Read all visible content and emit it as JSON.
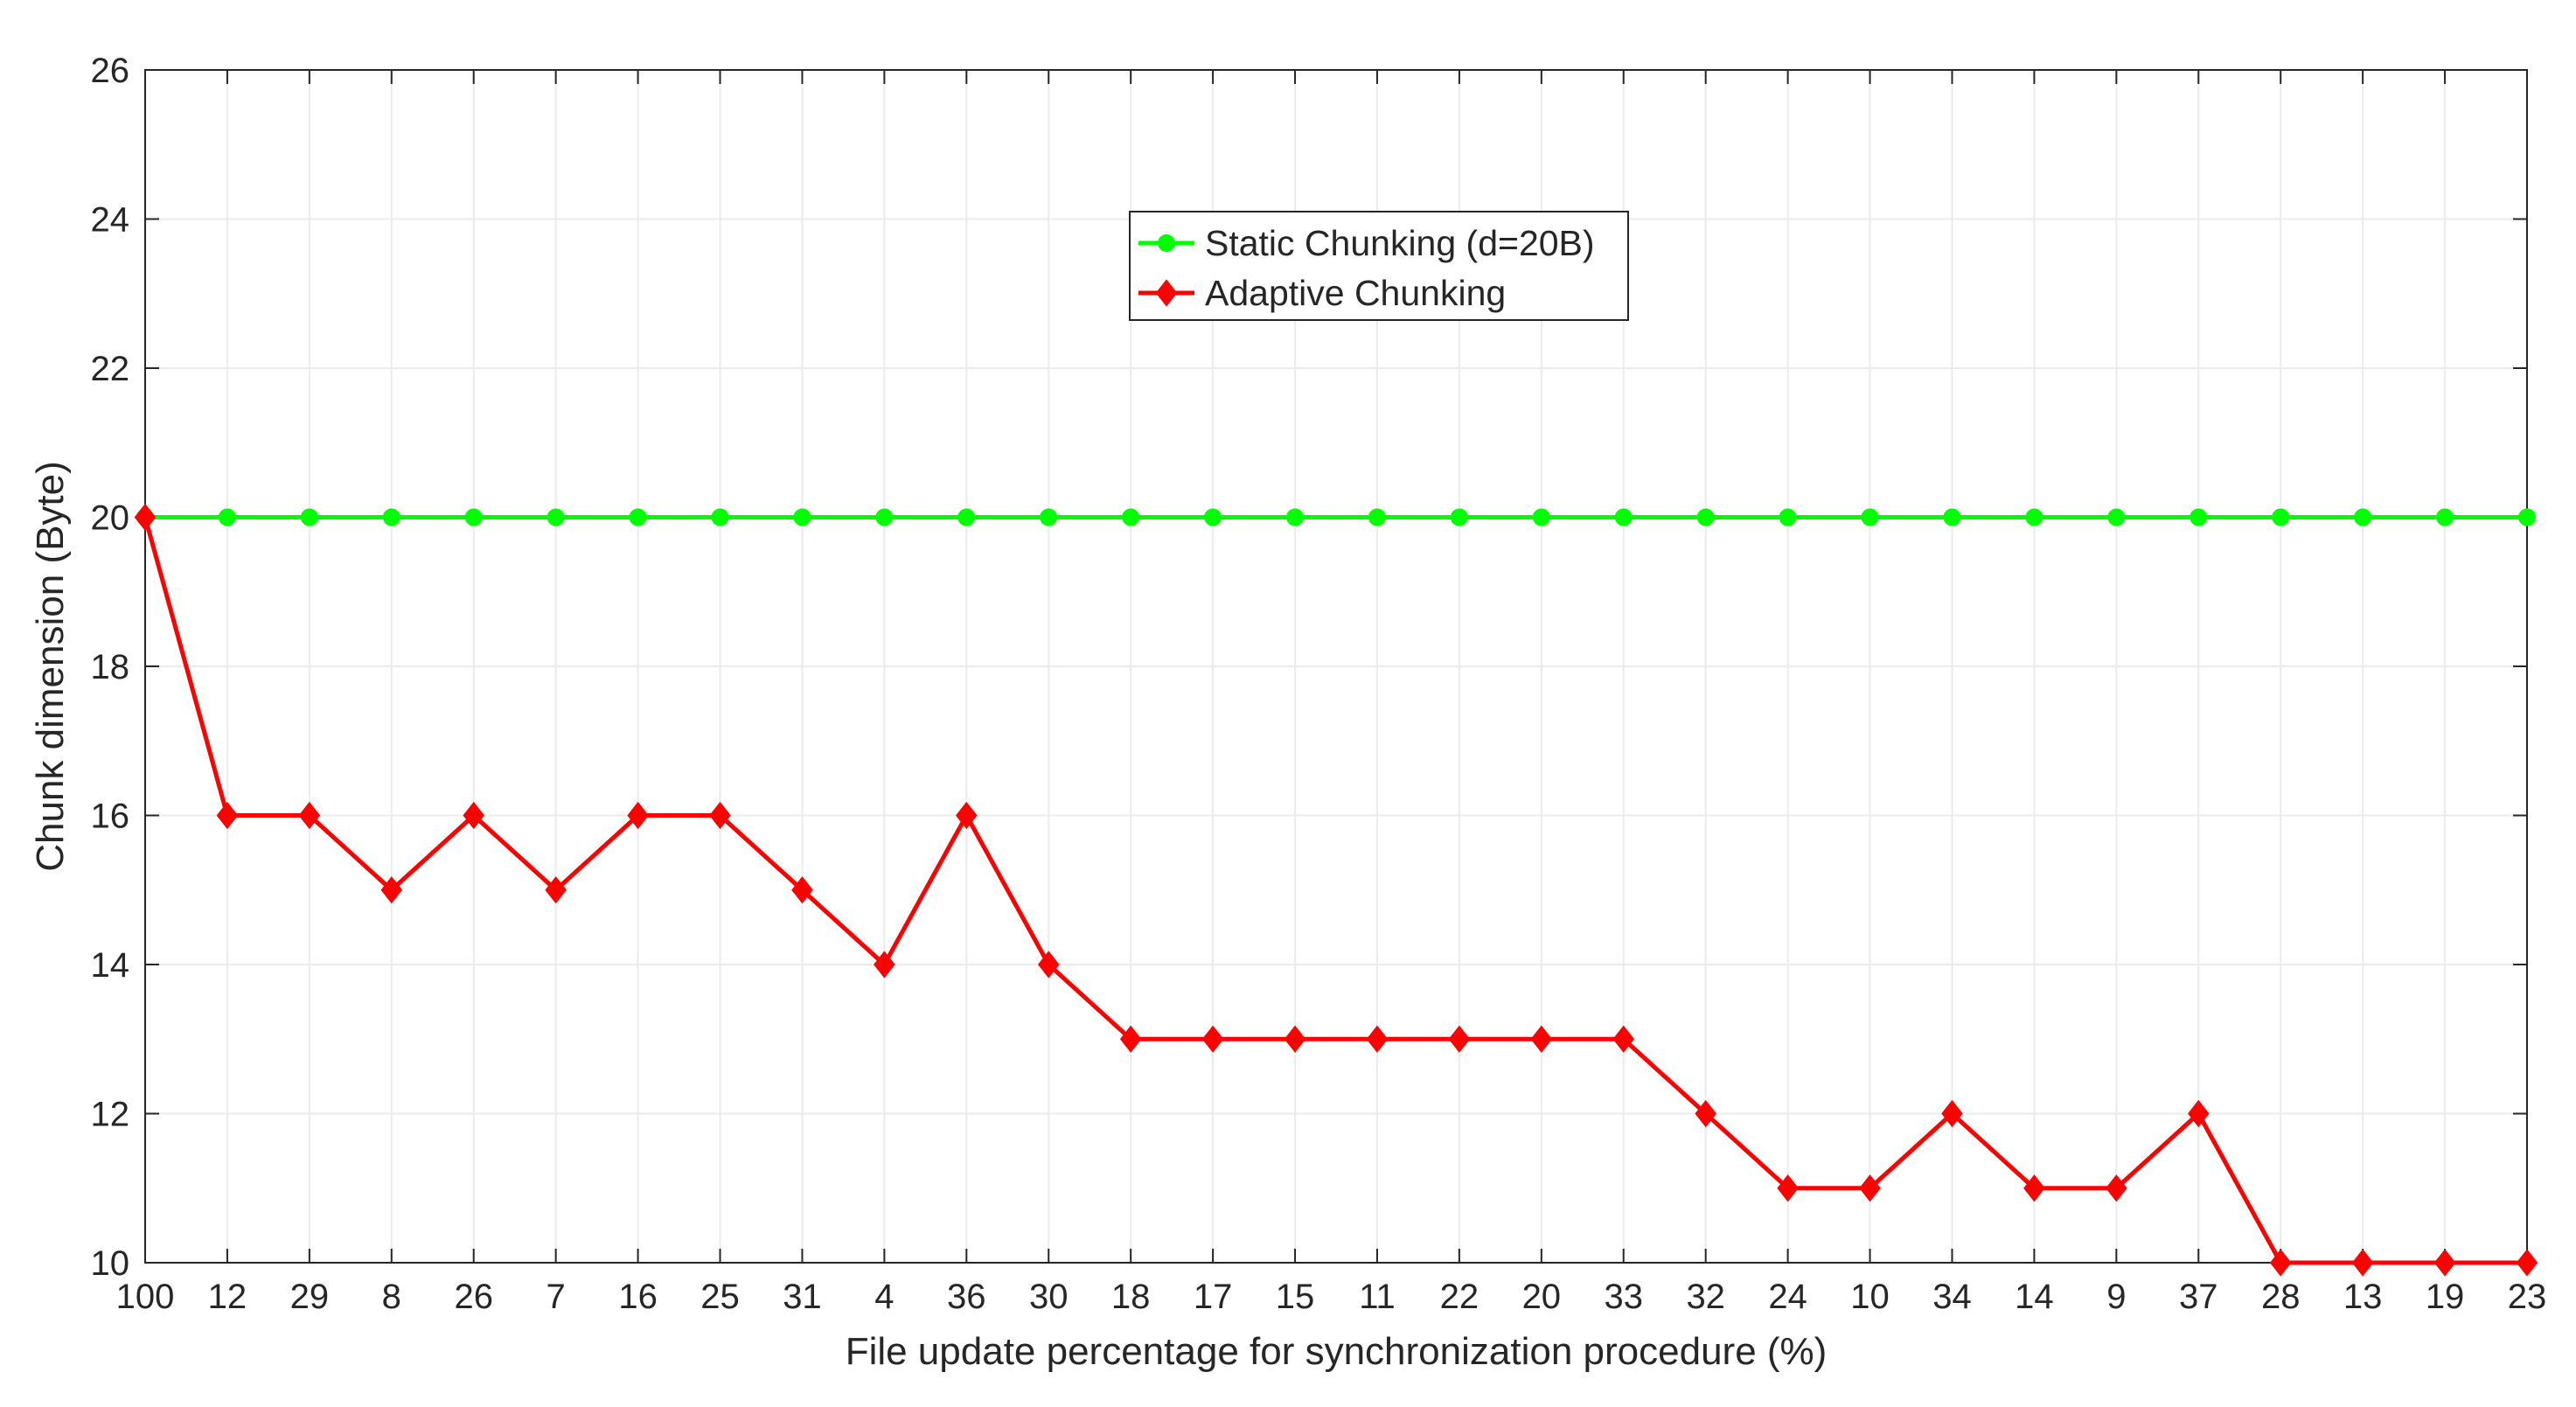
{
  "chart_data": {
    "type": "line",
    "title": "",
    "xlabel": "File update percentage for synchronization procedure (%)",
    "ylabel": "Chunk dimension (Byte)",
    "categories": [
      "100",
      "12",
      "29",
      "8",
      "26",
      "7",
      "16",
      "25",
      "31",
      "4",
      "36",
      "30",
      "18",
      "17",
      "15",
      "11",
      "22",
      "20",
      "33",
      "32",
      "24",
      "10",
      "34",
      "14",
      "9",
      "37",
      "28",
      "13",
      "19",
      "23"
    ],
    "ylim": [
      10,
      26
    ],
    "yticks": [
      10,
      12,
      14,
      16,
      18,
      20,
      22,
      24,
      26
    ],
    "grid": true,
    "legend_position": "top-center",
    "series": [
      {
        "name": "Static Chunking (d=20B)",
        "color": "#00ff00",
        "marker": "circle",
        "values": [
          20,
          20,
          20,
          20,
          20,
          20,
          20,
          20,
          20,
          20,
          20,
          20,
          20,
          20,
          20,
          20,
          20,
          20,
          20,
          20,
          20,
          20,
          20,
          20,
          20,
          20,
          20,
          20,
          20,
          20
        ]
      },
      {
        "name": "Adaptive Chunking",
        "color": "#ff0000",
        "marker": "diamond",
        "values": [
          20,
          16,
          16,
          15,
          16,
          15,
          16,
          16,
          15,
          14,
          16,
          14,
          13,
          13,
          13,
          13,
          13,
          13,
          13,
          12,
          11,
          11,
          12,
          11,
          11,
          12,
          10,
          10,
          10,
          10
        ]
      }
    ]
  }
}
